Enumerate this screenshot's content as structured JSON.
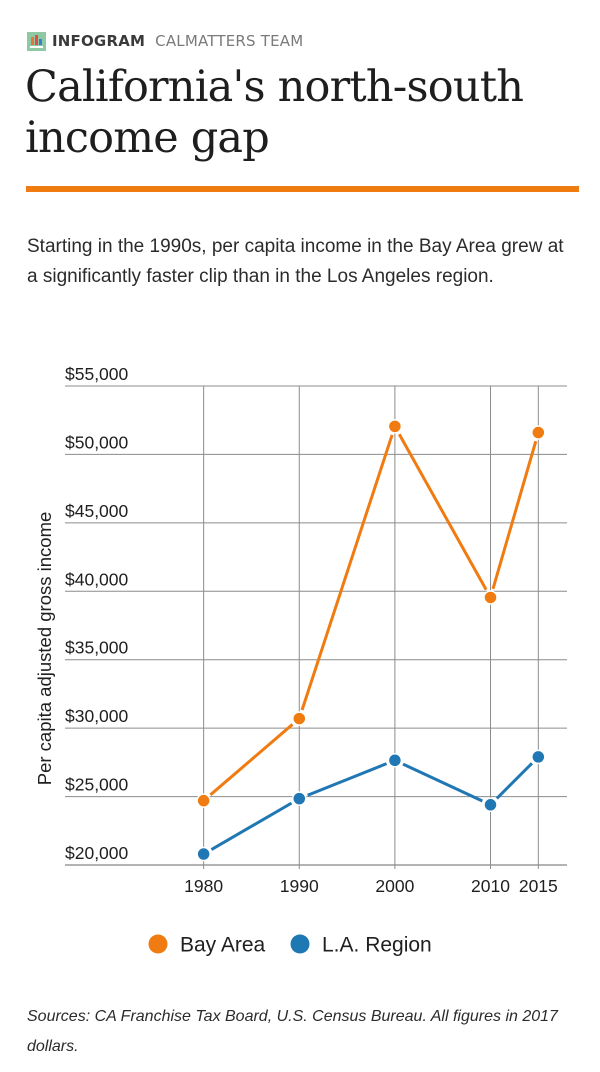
{
  "header": {
    "brand": "INFOGRAM",
    "team": "CALMATTERS TEAM",
    "logo_icon": "infogram-logo-icon"
  },
  "title": "California's north-south income gap",
  "accent_color": "#f07b11",
  "description": "Starting in the 1990s, per capita income in the Bay Area grew at a significantly faster clip than in the Los Angeles region.",
  "footer": "Sources: CA Franchise Tax Board, U.S. Census Bureau.  All figures in 2017 dollars.",
  "chart_data": {
    "type": "line",
    "title": "",
    "xlabel": "",
    "ylabel": "Per capita adjusted gross income",
    "categories": [
      "1980",
      "1990",
      "2000",
      "2010",
      "2015"
    ],
    "x_positions": [
      1980,
      1990,
      2000,
      2010,
      2015
    ],
    "xlim": [
      1965.5,
      2018
    ],
    "ylim": [
      20000,
      55000
    ],
    "yticks": [
      20000,
      25000,
      30000,
      35000,
      40000,
      45000,
      50000,
      55000
    ],
    "ytick_labels": [
      "$20,000",
      "$25,000",
      "$30,000",
      "$35,000",
      "$40,000",
      "$45,000",
      "$50,000",
      "$55,000"
    ],
    "grid": true,
    "legend_position": "bottom-center",
    "series": [
      {
        "name": "Bay Area",
        "color": "#f07b11",
        "values": [
          24700,
          30700,
          52050,
          39550,
          51600
        ]
      },
      {
        "name": "L.A. Region",
        "color": "#1f77b4",
        "values": [
          20800,
          24850,
          27650,
          24400,
          27900
        ]
      }
    ]
  }
}
